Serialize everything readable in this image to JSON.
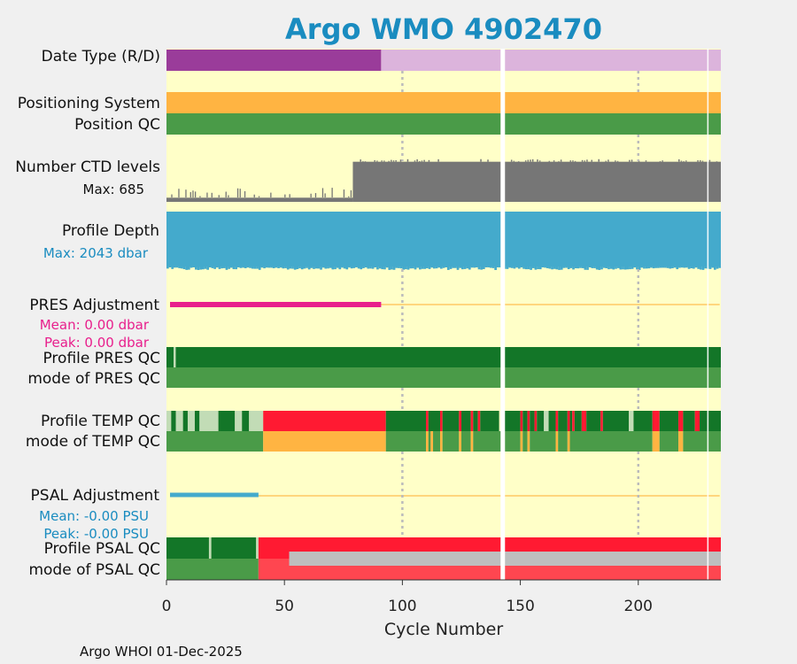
{
  "chart_data": {
    "type": "table",
    "title": "Argo WMO 4902470",
    "xlabel": "Cycle Number",
    "xlim": [
      0,
      235
    ],
    "xticks": [
      0,
      50,
      100,
      150,
      200
    ],
    "gridlines_at": [
      100,
      200
    ],
    "missing_cycles": [
      142
    ],
    "footer": "Argo WHOI 01-Dec-2025",
    "colors": {
      "background": "#ffffc8",
      "delayed": "#dcb4dc",
      "realtime": "#9a3c9a",
      "positioning": "#ffb442",
      "qc_good": "#4a9b48",
      "qc_dark": "#137628",
      "qc_light": "#c2dcb6",
      "qc_bad": "#ff1a32",
      "qc_prob": "#ffb442",
      "qc_salmon": "#ff4650",
      "qc_grey": "#bebebe",
      "ctd": "#767676",
      "depth": "#44aacc",
      "pres_adj": "#e81f8c",
      "psal_adj": "#44aacc",
      "zero_line": "#ffc864"
    },
    "rows": {
      "date_type": {
        "label": "Date Type (R/D)",
        "segments": [
          {
            "start": 0,
            "end": 91,
            "code": "R"
          },
          {
            "start": 91,
            "end": 235,
            "code": "D"
          }
        ]
      },
      "positioning_system": {
        "label": "Positioning System",
        "segments": [
          {
            "start": 0,
            "end": 235,
            "code": "GPS"
          }
        ]
      },
      "position_qc": {
        "label": "Position QC",
        "segments": [
          {
            "start": 0,
            "end": 235,
            "code": "1"
          }
        ]
      },
      "ctd_levels": {
        "label": "Number CTD levels",
        "max_label": "Max: 685",
        "max": 685,
        "segments": [
          {
            "start": 0,
            "end": 79,
            "approx_levels": 70
          },
          {
            "start": 79,
            "end": 235,
            "approx_levels": 675
          }
        ]
      },
      "profile_depth": {
        "label": "Profile Depth",
        "max_label": "Max: 2043 dbar",
        "max": 2043,
        "typical_dbar": 2000
      },
      "pres_adjustment": {
        "label": "PRES Adjustment",
        "mean_label": "Mean: 0.00 dbar",
        "peak_label": "Peak: 0.00 dbar",
        "adjusted_until_cycle": 91
      },
      "profile_pres_qc": {
        "label": "Profile PRES QC",
        "segments": [
          {
            "start": 0,
            "end": 235,
            "code": "A"
          }
        ],
        "exceptions": [
          {
            "cycle": 3,
            "code": "B"
          }
        ]
      },
      "mode_pres_qc": {
        "label": "mode of PRES QC",
        "segments": [
          {
            "start": 0,
            "end": 235,
            "code": "1"
          }
        ]
      },
      "profile_temp_qc": {
        "label": "Profile TEMP QC",
        "segments": [
          {
            "start": 0,
            "end": 2,
            "code": "B"
          },
          {
            "start": 2,
            "end": 4,
            "code": "A"
          },
          {
            "start": 4,
            "end": 7,
            "code": "B"
          },
          {
            "start": 7,
            "end": 9,
            "code": "A"
          },
          {
            "start": 9,
            "end": 12,
            "code": "B"
          },
          {
            "start": 12,
            "end": 14,
            "code": "A"
          },
          {
            "start": 14,
            "end": 22,
            "code": "B"
          },
          {
            "start": 22,
            "end": 29,
            "code": "A"
          },
          {
            "start": 29,
            "end": 32,
            "code": "B"
          },
          {
            "start": 32,
            "end": 35,
            "code": "A"
          },
          {
            "start": 35,
            "end": 41,
            "code": "B"
          },
          {
            "start": 41,
            "end": 93,
            "code": "F"
          },
          {
            "start": 93,
            "end": 110,
            "code": "A"
          },
          {
            "start": 110,
            "end": 111,
            "code": "F"
          },
          {
            "start": 111,
            "end": 116,
            "code": "A"
          },
          {
            "start": 116,
            "end": 117,
            "code": "F"
          },
          {
            "start": 117,
            "end": 124,
            "code": "A"
          },
          {
            "start": 124,
            "end": 125,
            "code": "F"
          },
          {
            "start": 125,
            "end": 129,
            "code": "A"
          },
          {
            "start": 129,
            "end": 130,
            "code": "F"
          },
          {
            "start": 130,
            "end": 132,
            "code": "A"
          },
          {
            "start": 132,
            "end": 133,
            "code": "F"
          },
          {
            "start": 133,
            "end": 141,
            "code": "A"
          },
          {
            "start": 143,
            "end": 150,
            "code": "A"
          },
          {
            "start": 150,
            "end": 151,
            "code": "F"
          },
          {
            "start": 151,
            "end": 153,
            "code": "A"
          },
          {
            "start": 153,
            "end": 154,
            "code": "F"
          },
          {
            "start": 154,
            "end": 156,
            "code": "A"
          },
          {
            "start": 156,
            "end": 157,
            "code": "F"
          },
          {
            "start": 157,
            "end": 160,
            "code": "A"
          },
          {
            "start": 160,
            "end": 162,
            "code": "B"
          },
          {
            "start": 162,
            "end": 165,
            "code": "A"
          },
          {
            "start": 165,
            "end": 166,
            "code": "F"
          },
          {
            "start": 166,
            "end": 170,
            "code": "A"
          },
          {
            "start": 170,
            "end": 171,
            "code": "F"
          },
          {
            "start": 171,
            "end": 172,
            "code": "A"
          },
          {
            "start": 172,
            "end": 173,
            "code": "F"
          },
          {
            "start": 173,
            "end": 176,
            "code": "A"
          },
          {
            "start": 176,
            "end": 178,
            "code": "F"
          },
          {
            "start": 178,
            "end": 184,
            "code": "A"
          },
          {
            "start": 184,
            "end": 185,
            "code": "F"
          },
          {
            "start": 185,
            "end": 196,
            "code": "A"
          },
          {
            "start": 196,
            "end": 198,
            "code": "B"
          },
          {
            "start": 198,
            "end": 206,
            "code": "A"
          },
          {
            "start": 206,
            "end": 209,
            "code": "F"
          },
          {
            "start": 209,
            "end": 217,
            "code": "A"
          },
          {
            "start": 217,
            "end": 219,
            "code": "F"
          },
          {
            "start": 219,
            "end": 224,
            "code": "A"
          },
          {
            "start": 224,
            "end": 226,
            "code": "F"
          },
          {
            "start": 226,
            "end": 235,
            "code": "A"
          }
        ]
      },
      "mode_temp_qc": {
        "label": "mode of TEMP QC",
        "segments": [
          {
            "start": 0,
            "end": 41,
            "code": "1"
          },
          {
            "start": 41,
            "end": 93,
            "code": "3"
          },
          {
            "start": 93,
            "end": 110,
            "code": "1"
          },
          {
            "start": 110,
            "end": 111,
            "code": "3"
          },
          {
            "start": 111,
            "end": 112,
            "code": "1"
          },
          {
            "start": 112,
            "end": 113,
            "code": "3"
          },
          {
            "start": 113,
            "end": 116,
            "code": "1"
          },
          {
            "start": 116,
            "end": 117,
            "code": "3"
          },
          {
            "start": 117,
            "end": 124,
            "code": "1"
          },
          {
            "start": 124,
            "end": 125,
            "code": "3"
          },
          {
            "start": 125,
            "end": 129,
            "code": "1"
          },
          {
            "start": 129,
            "end": 130,
            "code": "3"
          },
          {
            "start": 130,
            "end": 150,
            "code": "1"
          },
          {
            "start": 150,
            "end": 151,
            "code": "3"
          },
          {
            "start": 151,
            "end": 153,
            "code": "1"
          },
          {
            "start": 153,
            "end": 154,
            "code": "3"
          },
          {
            "start": 154,
            "end": 165,
            "code": "1"
          },
          {
            "start": 165,
            "end": 166,
            "code": "3"
          },
          {
            "start": 166,
            "end": 170,
            "code": "1"
          },
          {
            "start": 170,
            "end": 171,
            "code": "3"
          },
          {
            "start": 171,
            "end": 206,
            "code": "1"
          },
          {
            "start": 206,
            "end": 209,
            "code": "3"
          },
          {
            "start": 209,
            "end": 217,
            "code": "1"
          },
          {
            "start": 217,
            "end": 219,
            "code": "3"
          },
          {
            "start": 219,
            "end": 235,
            "code": "1"
          }
        ]
      },
      "psal_adjustment": {
        "label": "PSAL Adjustment",
        "mean_label": "Mean: -0.00 PSU",
        "peak_label": "Peak: -0.00 PSU",
        "adjusted_until_cycle": 39
      },
      "profile_psal_qc": {
        "label": "Profile PSAL QC",
        "segments": [
          {
            "start": 0,
            "end": 18,
            "code": "A"
          },
          {
            "start": 18,
            "end": 19,
            "code": "B"
          },
          {
            "start": 19,
            "end": 38,
            "code": "A"
          },
          {
            "start": 38,
            "end": 39,
            "code": "B"
          },
          {
            "start": 39,
            "end": 235,
            "code": "F"
          }
        ]
      },
      "mode_psal_qc": {
        "label": "mode of PSAL QC",
        "segments": [
          {
            "start": 0,
            "end": 39,
            "code": "1"
          },
          {
            "start": 39,
            "end": 235,
            "code": "4"
          }
        ],
        "grey_overlay": {
          "start": 52,
          "end": 235,
          "code": "raw"
        }
      }
    }
  }
}
